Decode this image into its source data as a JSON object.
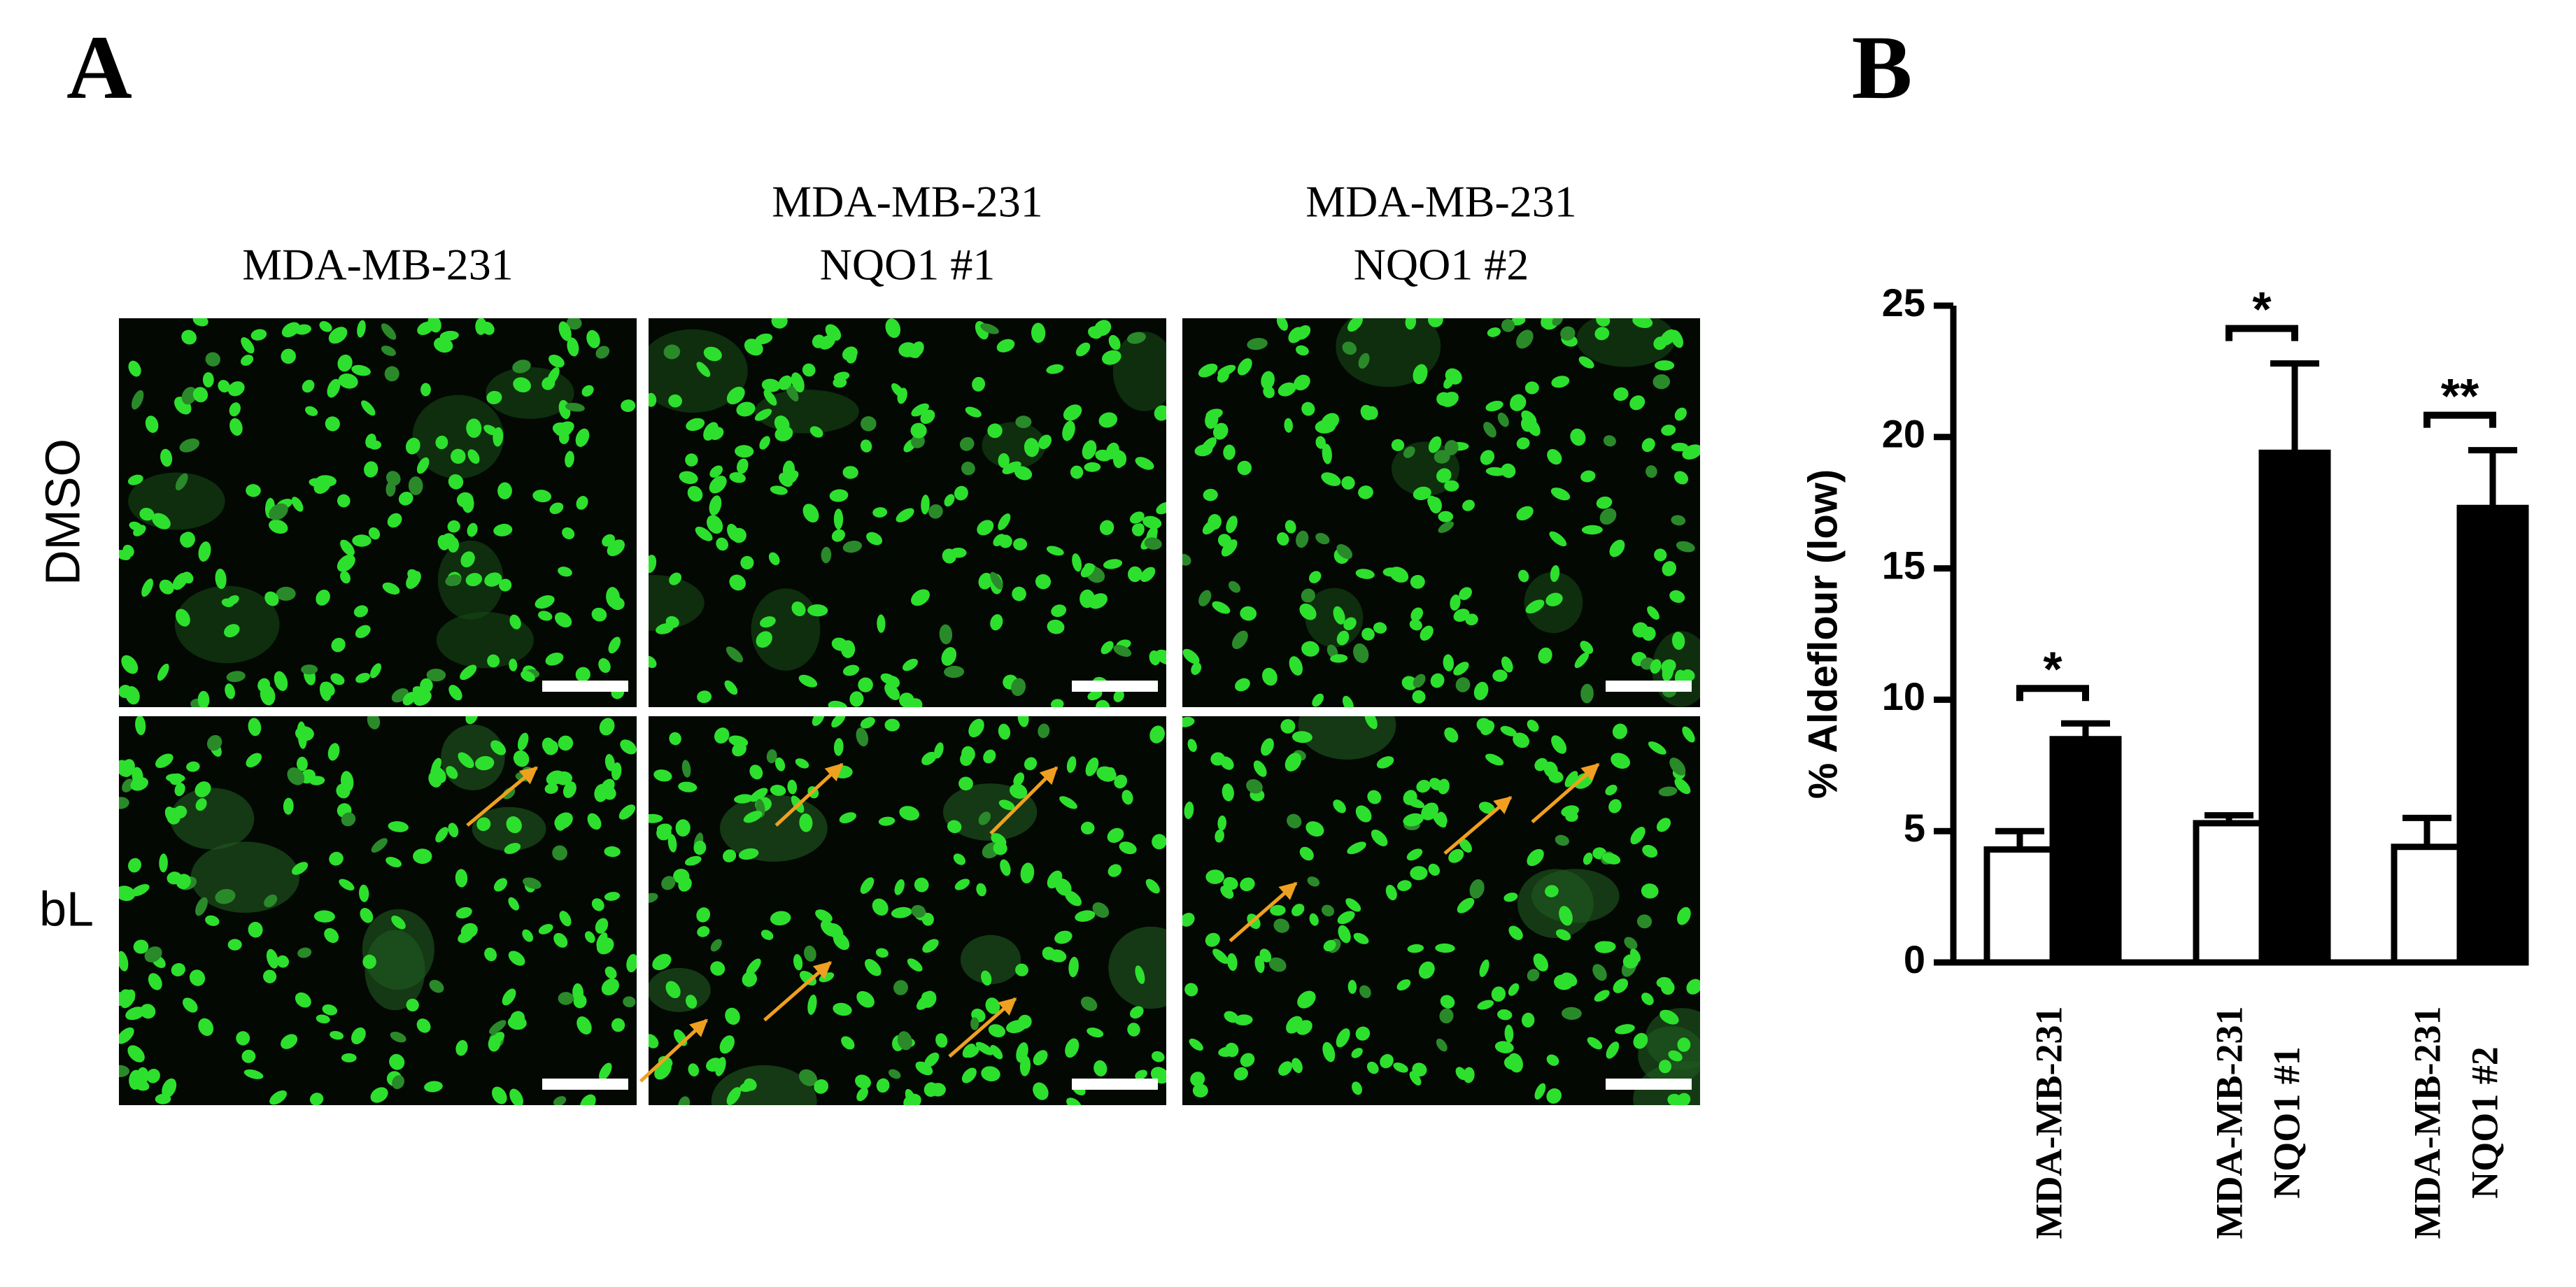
{
  "panel_a": {
    "label": "A",
    "columns": [
      [
        "MDA-MB-231"
      ],
      [
        "MDA-MB-231",
        "NQO1 #1"
      ],
      [
        "MDA-MB-231",
        "NQO1 #2"
      ]
    ],
    "rows": [
      "DMSO",
      "bL"
    ]
  },
  "chart_data": {
    "type": "bar",
    "label": "B",
    "ylabel": "% Aldeflour (low)",
    "categories": [
      [
        "MDA-MB-231"
      ],
      [
        "MDA-MB-231",
        "NQO1 #1"
      ],
      [
        "MDA-MB-231",
        "NQO1 #2"
      ]
    ],
    "series": [
      {
        "color": "#ffffff",
        "values": [
          4.3,
          5.3,
          4.4
        ],
        "errors": [
          0.7,
          0.3,
          1.1
        ]
      },
      {
        "color": "#000000",
        "values": [
          8.5,
          19.4,
          17.3
        ],
        "errors": [
          0.6,
          3.4,
          2.2
        ]
      }
    ],
    "significance": [
      "*",
      "*",
      "**"
    ],
    "ylim": [
      0,
      25
    ],
    "yticks": [
      0,
      5,
      10,
      15,
      20,
      25
    ]
  }
}
